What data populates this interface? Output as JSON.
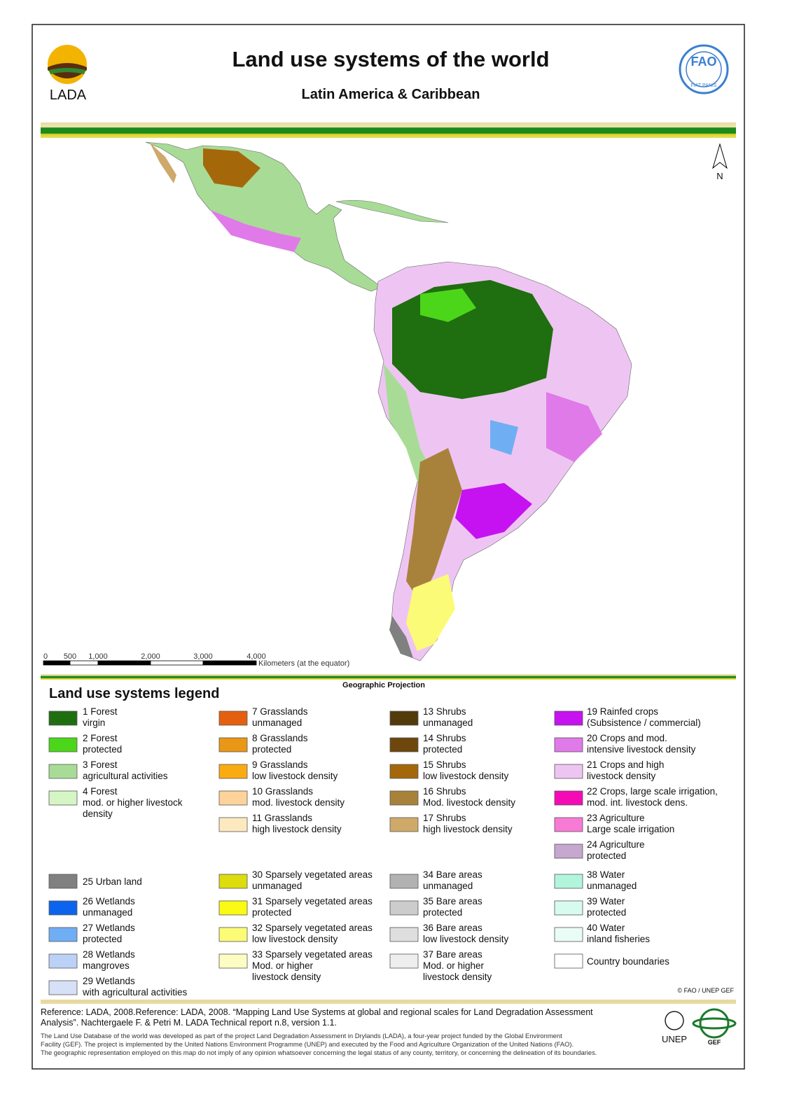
{
  "header": {
    "title": "Land use systems of the world",
    "subtitle": "Latin America & Caribbean",
    "logo_left": "LADA",
    "logo_right": "FAO",
    "logo_right_motto": "FIAT PANIS"
  },
  "map": {
    "north": "N",
    "scale_ticks": [
      "0",
      "500",
      "1,000",
      "2,000",
      "3,000",
      "4,000"
    ],
    "scale_unit": "Kilometers (at the equator)",
    "projection": "Geographic Projection"
  },
  "legend": {
    "title": "Land use systems legend",
    "groups": [
      {
        "columns": [
          [
            {
              "lines": [
                "1 Forest",
                "virgin"
              ],
              "color": "#1f6e0f"
            },
            {
              "lines": [
                "2 Forest",
                "protected"
              ],
              "color": "#4cd619"
            },
            {
              "lines": [
                "3 Forest",
                "agricultural activities"
              ],
              "color": "#a8dc96"
            },
            {
              "lines": [
                "4 Forest",
                "mod. or higher livestock",
                "density"
              ],
              "color": "#d5f5c5"
            }
          ],
          [
            {
              "lines": [
                "7 Grasslands",
                "unmanaged"
              ],
              "color": "#e5600e"
            },
            {
              "lines": [
                "8 Grasslands",
                "protected"
              ],
              "color": "#e99716"
            },
            {
              "lines": [
                "9 Grasslands",
                "low livestock density"
              ],
              "color": "#fbab12"
            },
            {
              "lines": [
                "10 Grasslands",
                "mod. livestock density"
              ],
              "color": "#fdd39a"
            },
            {
              "lines": [
                "11 Grasslands",
                "high livestock density"
              ],
              "color": "#fde9c0"
            }
          ],
          [
            {
              "lines": [
                "13 Shrubs",
                "unmanaged"
              ],
              "color": "#533a0b"
            },
            {
              "lines": [
                "14 Shrubs",
                "protected"
              ],
              "color": "#6e470c"
            },
            {
              "lines": [
                "15 Shrubs",
                "low livestock density"
              ],
              "color": "#a4680b"
            },
            {
              "lines": [
                "16 Shrubs",
                "Mod. livestock density"
              ],
              "color": "#a8823b"
            },
            {
              "lines": [
                "17 Shrubs",
                "high livestock density"
              ],
              "color": "#cfa96a"
            }
          ],
          [
            {
              "lines": [
                "19 Rainfed crops",
                "(Subsistence / commercial)"
              ],
              "color": "#c612f0"
            },
            {
              "lines": [
                "20 Crops and mod.",
                "intensive livestock density"
              ],
              "color": "#e07ae8"
            },
            {
              "lines": [
                "21 Crops and high",
                "livestock density"
              ],
              "color": "#eec5f2"
            },
            {
              "lines": [
                "22 Crops, large scale irrigation,",
                "mod. int. livestock dens."
              ],
              "color": "#f50bb5"
            },
            {
              "lines": [
                "23 Agriculture",
                "Large scale irrigation"
              ],
              "color": "#f77ad5"
            },
            {
              "lines": [
                "24 Agriculture",
                "protected"
              ],
              "color": "#c6a7cf"
            }
          ]
        ]
      },
      {
        "columns": [
          [
            {
              "lines": [
                "25 Urban land"
              ],
              "color": "#808080"
            },
            {
              "lines": [
                "26 Wetlands",
                "unmanaged"
              ],
              "color": "#0d64ec"
            },
            {
              "lines": [
                "27 Wetlands",
                "protected"
              ],
              "color": "#70aef4"
            },
            {
              "lines": [
                "28 Wetlands",
                "mangroves"
              ],
              "color": "#bcd1f6"
            },
            {
              "lines": [
                "29 Wetlands",
                "with agricultural activities"
              ],
              "color": "#d6e1f7"
            }
          ],
          [
            {
              "lines": [
                "30 Sparsely vegetated areas",
                "unmanaged"
              ],
              "color": "#dddc0c"
            },
            {
              "lines": [
                "31 Sparsely vegetated areas",
                "protected"
              ],
              "color": "#fafa14"
            },
            {
              "lines": [
                "32 Sparsely vegetated areas",
                "low livestock density"
              ],
              "color": "#fbfb78"
            },
            {
              "lines": [
                "33 Sparsely vegetated areas",
                "Mod. or higher",
                "livestock density"
              ],
              "color": "#fdfdc3"
            }
          ],
          [
            {
              "lines": [
                "34 Bare areas",
                "unmanaged"
              ],
              "color": "#b2b2b2"
            },
            {
              "lines": [
                "35 Bare areas",
                "protected"
              ],
              "color": "#cccccc"
            },
            {
              "lines": [
                "36 Bare areas",
                "low livestock density"
              ],
              "color": "#dedede"
            },
            {
              "lines": [
                "37 Bare areas",
                "Mod. or higher",
                "livestock density"
              ],
              "color": "#eeeeee"
            }
          ],
          [
            {
              "lines": [
                "38 Water",
                "unmanaged"
              ],
              "color": "#b2f5dd"
            },
            {
              "lines": [
                "39 Water",
                "protected"
              ],
              "color": "#d7fbef"
            },
            {
              "lines": [
                "40 Water",
                "inland fisheries"
              ],
              "color": "#e9fcf6"
            },
            {
              "lines": [
                "Country boundaries"
              ],
              "color": "#ffffff"
            }
          ]
        ]
      }
    ],
    "copyright": "© FAO / UNEP GEF"
  },
  "footer": {
    "reference": [
      "Reference: LADA, 2008.Reference: LADA, 2008. “Mapping Land Use Systems at global and regional scales for Land Degradation Assessment",
      "Analysis”. Nachtergaele F. & Petri M. LADA Technical report n.8, version 1.1."
    ],
    "notes": [
      "The Land Use Database of the world was developed as part of the project Land Degradation Assessment in Drylands (LADA), a four-year project funded by the Global Environment",
      "Facility (GEF). The project is implemented by the United Nations Environment Programme (UNEP) and executed by the Food and Agriculture Organization of the United Nations (FAO).",
      "The geographic representation employed on this map do not imply of any opinion whatsoever concerning the legal status of any county, territory, or concerning the delineation of its boundaries."
    ],
    "logo_unep": "UNEP",
    "logo_gef": "GEF"
  }
}
